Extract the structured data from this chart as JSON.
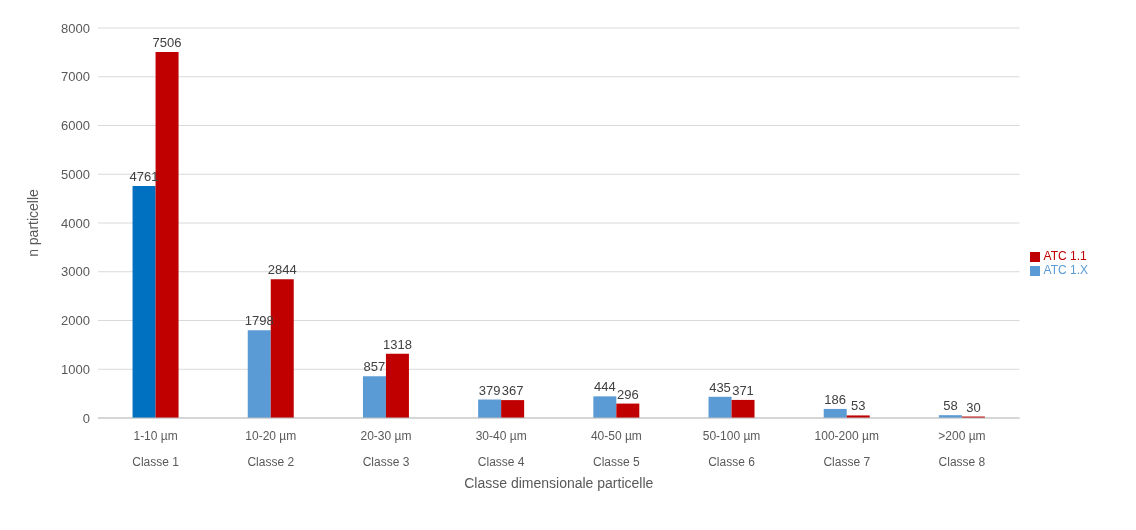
{
  "chart_data": {
    "type": "bar",
    "xlabel": "Classe dimensionale particelle",
    "ylabel": "n particelle",
    "categories": [
      "1-10 µm\nClasse 1",
      "10-20 µm\nClasse 2",
      "20-30 µm\nClasse 3",
      "30-40 µm\nClasse 4",
      "40-50 µm\nClasse 5",
      "50-100 µm\nClasse 6",
      "100-200 µm\nClasse 7",
      ">200 µm\nClasse 8"
    ],
    "series": [
      {
        "name": "ATC 1.X",
        "color": "#5b9bd5",
        "colors": [
          "#0070c0",
          "#5b9bd5",
          "#5b9bd5",
          "#5b9bd5",
          "#5b9bd5",
          "#5b9bd5",
          "#5b9bd5",
          "#5b9bd5"
        ],
        "values": [
          4761,
          1798,
          857,
          379,
          444,
          435,
          186,
          58
        ]
      },
      {
        "name": "ATC 1.1",
        "color": "#c00000",
        "values": [
          7506,
          2844,
          1318,
          367,
          296,
          371,
          53,
          30
        ]
      }
    ],
    "ylim": [
      0,
      8000
    ],
    "yticks": [
      0,
      1000,
      2000,
      3000,
      4000,
      5000,
      6000,
      7000,
      8000
    ],
    "grid": "y",
    "legend": "right",
    "data_labels": true
  }
}
